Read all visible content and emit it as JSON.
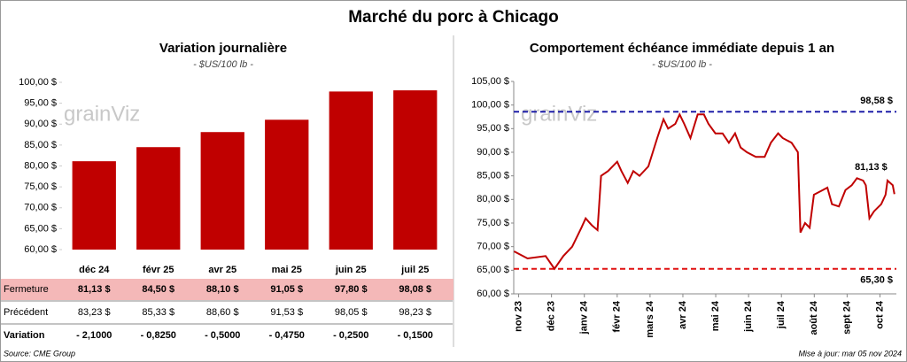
{
  "title": "Marché du porc à Chicago",
  "watermark": "grainViz",
  "source": "Source: CME Group",
  "updated": "Mise à jour: mar 05 nov 2024",
  "chart_data": [
    {
      "type": "bar",
      "title": "Variation journalière",
      "subtitle": "- $US/100 lb -",
      "color": "#c00000",
      "categories": [
        "déc 24",
        "févr 25",
        "avr 25",
        "mai 25",
        "juin 25",
        "juil 25"
      ],
      "values": [
        81.13,
        84.5,
        88.1,
        91.05,
        97.8,
        98.08
      ],
      "ylim": [
        60,
        100
      ],
      "yticks": [
        {
          "value": 60,
          "label": "60,00 $"
        },
        {
          "value": 65,
          "label": "65,00 $"
        },
        {
          "value": 70,
          "label": "70,00 $"
        },
        {
          "value": 75,
          "label": "75,00 $"
        },
        {
          "value": 80,
          "label": "80,00 $"
        },
        {
          "value": 85,
          "label": "85,00 $"
        },
        {
          "value": 90,
          "label": "90,00 $"
        },
        {
          "value": 95,
          "label": "95,00 $"
        },
        {
          "value": 100,
          "label": "100,00 $"
        }
      ]
    },
    {
      "type": "line",
      "title": "Comportement échéance immédiate depuis 1 an",
      "subtitle": "- $US/100 lb -",
      "series": [
        {
          "color": "#c00000",
          "x": [
            -0.14,
            0.27,
            0.82,
            1.09,
            1.36,
            1.63,
            1.91,
            2.04,
            2.23,
            2.4,
            2.51,
            2.72,
            3.0,
            3.13,
            3.32,
            3.49,
            3.68,
            3.95,
            4.22,
            4.41,
            4.55,
            4.77,
            4.9,
            5.04,
            5.23,
            5.45,
            5.64,
            5.78,
            5.99,
            6.21,
            6.4,
            6.59,
            6.76,
            6.95,
            7.22,
            7.49,
            7.68,
            7.9,
            8.04,
            8.31,
            8.5,
            8.58,
            8.72,
            8.86,
            8.99,
            9.26,
            9.4,
            9.54,
            9.75,
            9.95,
            10.14,
            10.3,
            10.49,
            10.57,
            10.68,
            10.82,
            11.04,
            11.17,
            11.23,
            11.39,
            11.44
          ],
          "values": [
            69,
            67.5,
            68,
            65.3,
            68,
            70,
            74,
            76,
            74.5,
            73.5,
            85,
            86,
            88,
            86,
            83.5,
            86,
            85,
            87,
            93,
            97,
            95,
            96,
            98,
            96,
            93,
            98,
            98,
            96,
            94,
            94,
            92,
            94,
            91,
            90,
            89,
            89,
            92,
            94,
            93,
            92,
            90,
            73,
            75,
            74,
            81,
            82,
            82.5,
            79,
            78.5,
            82,
            83,
            84.5,
            84,
            83,
            76,
            77.5,
            79,
            81,
            84,
            83,
            81.13
          ]
        }
      ],
      "xlim": [
        -0.15,
        11.5
      ],
      "xticks": [
        {
          "value": 0,
          "label": "nov 23"
        },
        {
          "value": 1,
          "label": "déc 23"
        },
        {
          "value": 2,
          "label": "janv 24"
        },
        {
          "value": 3,
          "label": "févr 24"
        },
        {
          "value": 4,
          "label": "mars 24"
        },
        {
          "value": 5,
          "label": "avr 24"
        },
        {
          "value": 6,
          "label": "mai 24"
        },
        {
          "value": 7,
          "label": "juin 24"
        },
        {
          "value": 8,
          "label": "juil 24"
        },
        {
          "value": 9,
          "label": "août 24"
        },
        {
          "value": 10,
          "label": "sept 24"
        },
        {
          "value": 11,
          "label": "oct 24"
        }
      ],
      "ylim": [
        60,
        105
      ],
      "yticks": [
        {
          "value": 60,
          "label": "60,00 $"
        },
        {
          "value": 65,
          "label": "65,00 $"
        },
        {
          "value": 70,
          "label": "70,00 $"
        },
        {
          "value": 75,
          "label": "75,00 $"
        },
        {
          "value": 80,
          "label": "80,00 $"
        },
        {
          "value": 85,
          "label": "85,00 $"
        },
        {
          "value": 90,
          "label": "90,00 $"
        },
        {
          "value": 95,
          "label": "95,00 $"
        },
        {
          "value": 100,
          "label": "100,00 $"
        },
        {
          "value": 105,
          "label": "105,00 $"
        }
      ],
      "hlines": [
        {
          "value": 98.58,
          "label": "98,58 $",
          "color": "#1f1fa8"
        },
        {
          "value": 65.3,
          "label": "65,30 $",
          "color": "#e01010"
        }
      ],
      "annotation": "81,13 $"
    }
  ],
  "table": {
    "rows": [
      {
        "label": "Fermeture",
        "cells": [
          "81,13  $",
          "84,50  $",
          "88,10  $",
          "91,05  $",
          "97,80  $",
          "98,08  $"
        ]
      },
      {
        "label": "Précédent",
        "cells": [
          "83,23  $",
          "85,33  $",
          "88,60  $",
          "91,53  $",
          "98,05  $",
          "98,23  $"
        ]
      },
      {
        "label": "Variation",
        "cells": [
          "- 2,1000",
          "- 0,8250",
          "- 0,5000",
          "- 0,4750",
          "- 0,2500",
          "- 0,1500"
        ]
      }
    ]
  }
}
